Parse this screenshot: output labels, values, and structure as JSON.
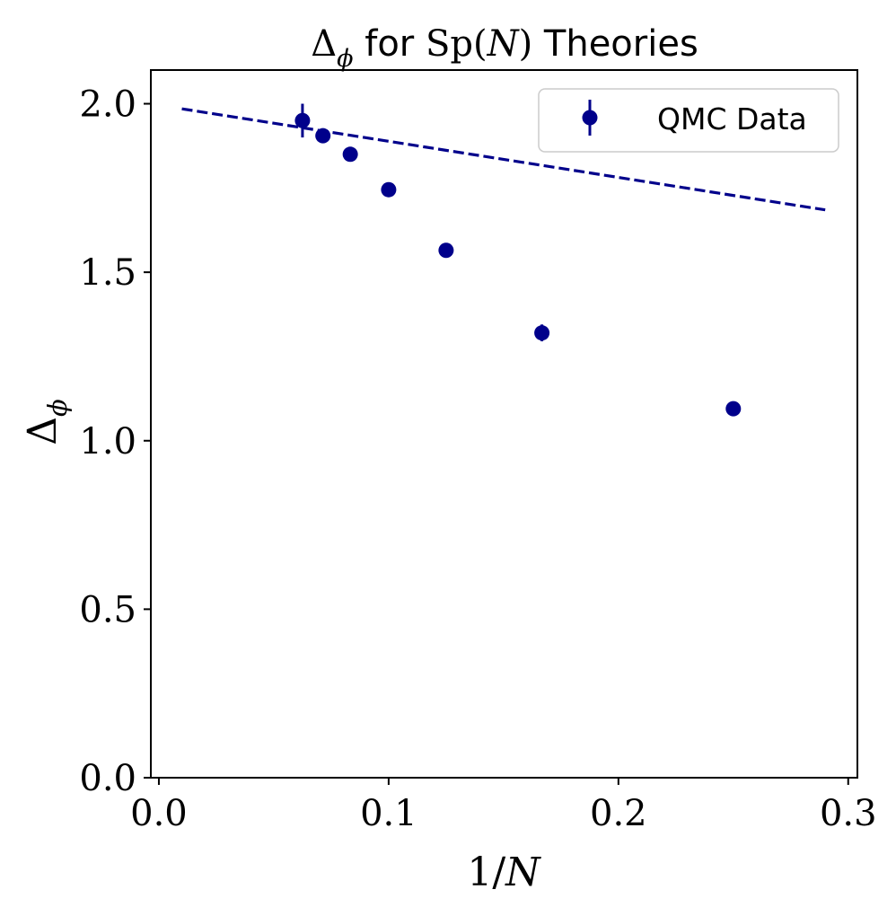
{
  "chart_data": {
    "type": "scatter",
    "title": "Δϕ for Sp(N) Theories",
    "title_parts": {
      "delta": "Δ",
      "sub": "ϕ",
      "mid": " for ",
      "group": "Sp(",
      "n": "N",
      "close": ")",
      "tail": " Theories"
    },
    "xlabel": "1/N",
    "xlabel_parts": {
      "num": "1/",
      "n": "N"
    },
    "ylabel": "Δϕ",
    "ylabel_parts": {
      "delta": "Δ",
      "sub": "ϕ"
    },
    "xlim": [
      -0.0035,
      0.304
    ],
    "ylim": [
      0.0,
      2.1
    ],
    "xticks": [
      0.0,
      0.1,
      0.2,
      0.3
    ],
    "xtick_labels": [
      "0.0",
      "0.1",
      "0.2",
      "0.3"
    ],
    "yticks": [
      0.0,
      0.5,
      1.0,
      1.5,
      2.0
    ],
    "ytick_labels": [
      "0.0",
      "0.5",
      "1.0",
      "1.5",
      "2.0"
    ],
    "grid": false,
    "legend_position": "top-right",
    "series": [
      {
        "name": "QMC Data",
        "kind": "errorbar",
        "color": "#00008b",
        "x": [
          0.0625,
          0.0714,
          0.0833,
          0.1,
          0.125,
          0.1667,
          0.25
        ],
        "y": [
          1.95,
          1.905,
          1.85,
          1.745,
          1.565,
          1.32,
          1.095
        ],
        "yerr": [
          0.05,
          0.02,
          0.012,
          0.01,
          0.01,
          0.025,
          0.01
        ]
      },
      {
        "kind": "line",
        "style": "dashed",
        "color": "#00008b",
        "x": [
          0.01,
          0.29
        ],
        "y": [
          1.985,
          1.685
        ]
      }
    ]
  }
}
